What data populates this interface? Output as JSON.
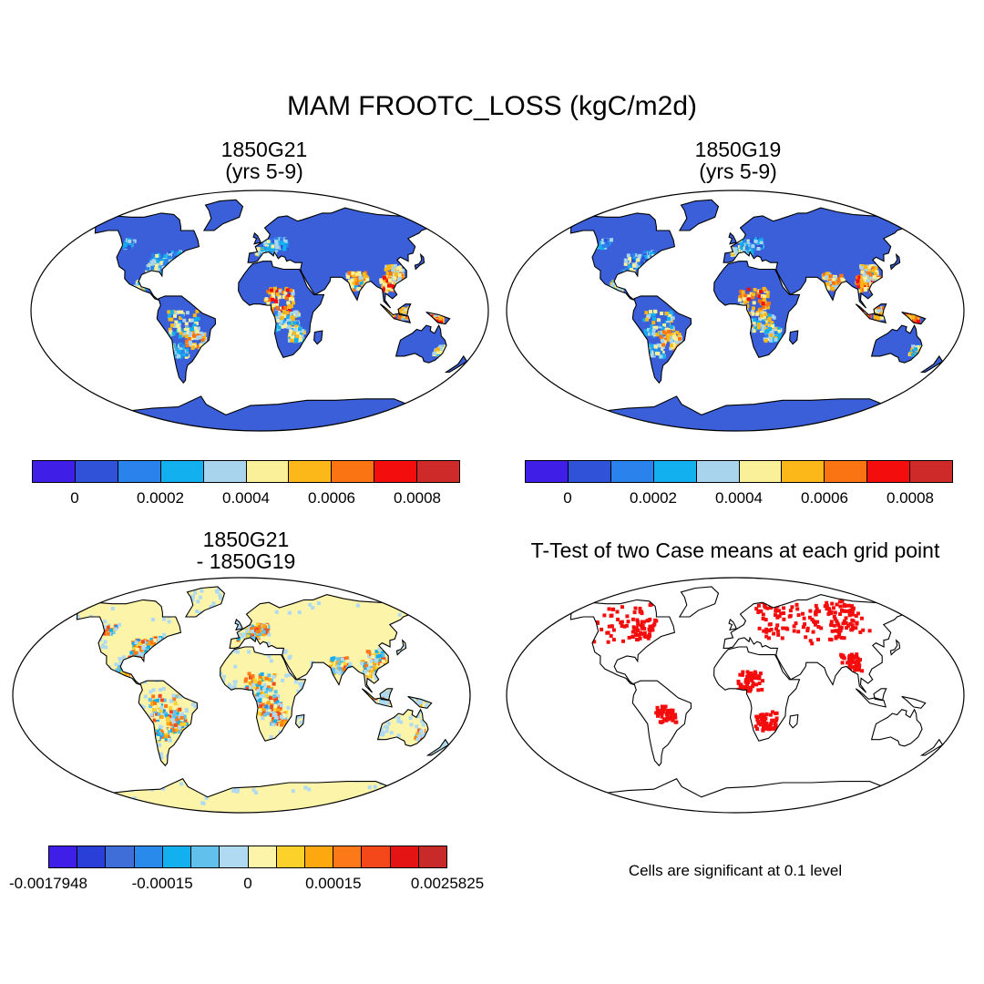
{
  "title": "MAM FROOTC_LOSS (kgC/m2d)",
  "panels": {
    "top_left": {
      "title_line1": "1850G21",
      "title_line2": "(yrs 5-9)"
    },
    "top_right": {
      "title_line1": "1850G19",
      "title_line2": "(yrs 5-9)"
    },
    "bottom_left": {
      "title_line1": "1850G21",
      "title_line2": "- 1850G19"
    },
    "bottom_right": {
      "title_line1": "T-Test of two Case means at each grid point"
    }
  },
  "colorbars": {
    "case": {
      "colors": [
        "#3f1fe8",
        "#2f52d8",
        "#2a82ec",
        "#12b0ee",
        "#a8d4ee",
        "#fbf09a",
        "#fbb818",
        "#fb7414",
        "#f40d0d",
        "#cf2a2a"
      ],
      "ticks": [
        "0",
        "0.0002",
        "0.0004",
        "0.0006",
        "0.0008"
      ]
    },
    "diff": {
      "colors": [
        "#3f1fe8",
        "#2a3fd8",
        "#3f6ed8",
        "#2a8aec",
        "#12b0ee",
        "#62c0ec",
        "#b0daf2",
        "#fcf4a8",
        "#fcd22a",
        "#fca80e",
        "#fc7818",
        "#f4481a",
        "#e41414",
        "#c82a2a"
      ],
      "ticks": [
        "-0.0017948",
        "-0.00015",
        "0",
        "0.00015",
        "0.0025825"
      ]
    }
  },
  "significance_note": "Cells are significant at 0.1 level",
  "map_colors": {
    "ocean": "#ffffff",
    "case_land": "#3a5fd9",
    "diff_land": "#fcf4a8",
    "ttest_land": "#ffffff",
    "significant": "#f40d0d",
    "coast": "#000000"
  }
}
